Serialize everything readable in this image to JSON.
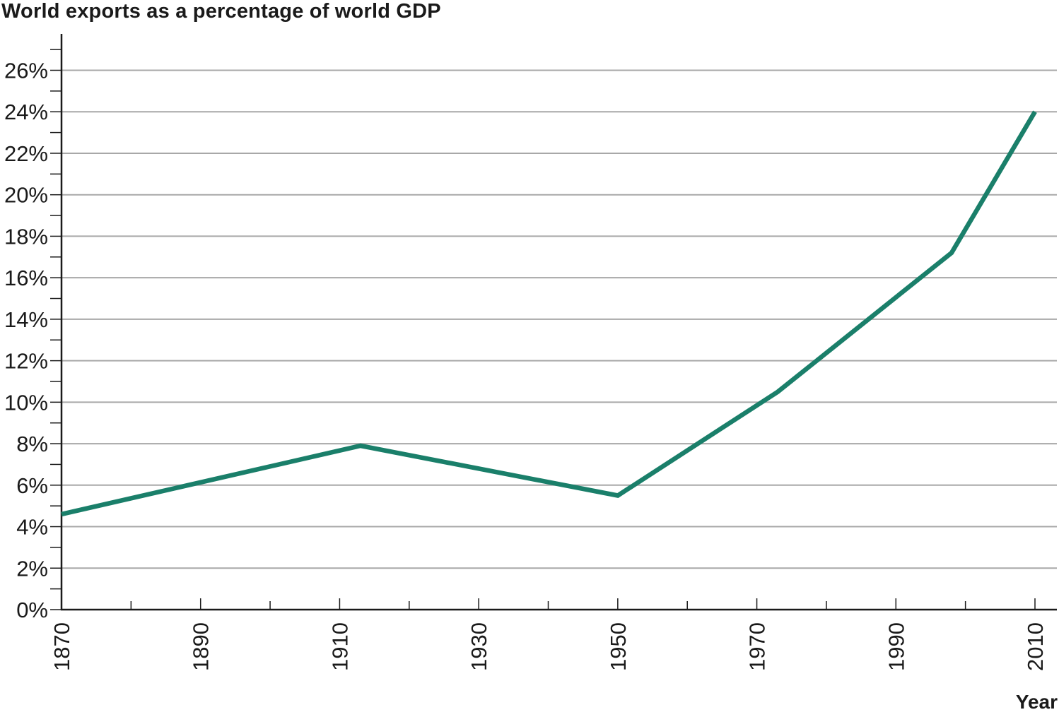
{
  "chart_data": {
    "type": "line",
    "title": "World exports as a percentage of world GDP",
    "xlabel": "Year",
    "ylabel": "",
    "xlim": [
      1870,
      2013
    ],
    "ylim": [
      0,
      26
    ],
    "x_ticks": [
      "1870",
      "1890",
      "1910",
      "1930",
      "1950",
      "1970",
      "1990",
      "2010"
    ],
    "y_ticks": [
      "0%",
      "2%",
      "4%",
      "6%",
      "8%",
      "10%",
      "12%",
      "14%",
      "16%",
      "18%",
      "20%",
      "22%",
      "24%",
      "26%"
    ],
    "grid": true,
    "series": [
      {
        "color": "#1a7f6a",
        "x": [
          1870,
          1913,
          1950,
          1973,
          1998,
          2010
        ],
        "y": [
          4.6,
          7.9,
          5.5,
          10.5,
          17.2,
          24.0
        ]
      }
    ]
  }
}
